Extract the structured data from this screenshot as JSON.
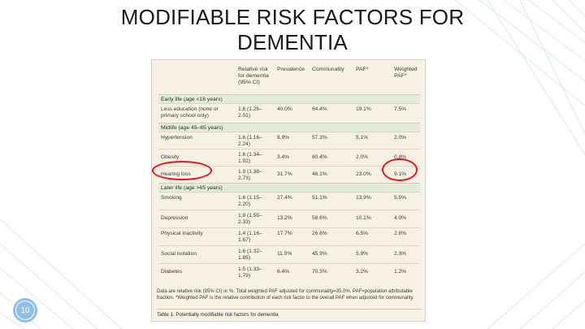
{
  "slide": {
    "title_line1": "MODIFIABLE RISK FACTORS FOR",
    "title_line2": "DEMENTIA",
    "page_number": "10"
  },
  "table": {
    "headers": {
      "factor": "",
      "rr": "Relative risk for dementia (95% CI)",
      "prevalence": "Prevalence",
      "communality": "Communality",
      "paf": "PAF*",
      "weighted_paf": "Weighted PAF*"
    },
    "sections": [
      {
        "label": "Early life (age <18 years)",
        "rows": [
          {
            "factor": "Less education (none or primary school only)",
            "rr": "1.6 (1.26–2.01)",
            "prevalence": "40.0%",
            "communality": "64.4%",
            "paf": "19.1%",
            "weighted_paf": "7.5%"
          }
        ]
      },
      {
        "label": "Midlife (age 45–65 years)",
        "rows": [
          {
            "factor": "Hypertension",
            "rr": "1.6 (1.16–2.24)",
            "prevalence": "8.9%",
            "communality": "57.3%",
            "paf": "5.1%",
            "weighted_paf": "2.0%"
          },
          {
            "factor": "Obesity",
            "rr": "1.6 (1.34–1.92)",
            "prevalence": "3.4%",
            "communality": "60.4%",
            "paf": "2.0%",
            "weighted_paf": "0.8%"
          },
          {
            "factor": "Hearing loss",
            "rr": "1.9 (1.38–2.73)",
            "prevalence": "31.7%",
            "communality": "46.1%",
            "paf": "23.0%",
            "weighted_paf": "9.1%"
          }
        ]
      },
      {
        "label": "Later life (age >65 years)",
        "rows": [
          {
            "factor": "Smoking",
            "rr": "1.6 (1.15–2.20)",
            "prevalence": "27.4%",
            "communality": "51.1%",
            "paf": "13.9%",
            "weighted_paf": "5.5%"
          },
          {
            "factor": "Depression",
            "rr": "1.9 (1.55–2.33)",
            "prevalence": "13.2%",
            "communality": "58.6%",
            "paf": "10.1%",
            "weighted_paf": "4.0%"
          },
          {
            "factor": "Physical inactivity",
            "rr": "1.4 (1.16–1.67)",
            "prevalence": "17.7%",
            "communality": "26.6%",
            "paf": "6.5%",
            "weighted_paf": "2.6%"
          },
          {
            "factor": "Social isolation",
            "rr": "1.6 (1.32–1.85)",
            "prevalence": "11.0%",
            "communality": "45.9%",
            "paf": "5.9%",
            "weighted_paf": "2.3%"
          },
          {
            "factor": "Diabetes",
            "rr": "1.5 (1.33–1.79)",
            "prevalence": "6.4%",
            "communality": "70.3%",
            "paf": "3.2%",
            "weighted_paf": "1.2%"
          }
        ]
      }
    ],
    "footnote": "Data are relative risk (95% CI) or %. Total weighted PAF adjusted for communality=35.0%. PAF=population attributable fraction. *Weighted PAF is the relative contribution of each risk factor to the overall PAF when adjusted for communality.",
    "caption": "Table 1: Potentially modifiable risk factors for dementia"
  },
  "colors": {
    "highlight": "#e0141b",
    "section_fill": "#e3ecd9",
    "page_badge": "#8dc0e6"
  }
}
